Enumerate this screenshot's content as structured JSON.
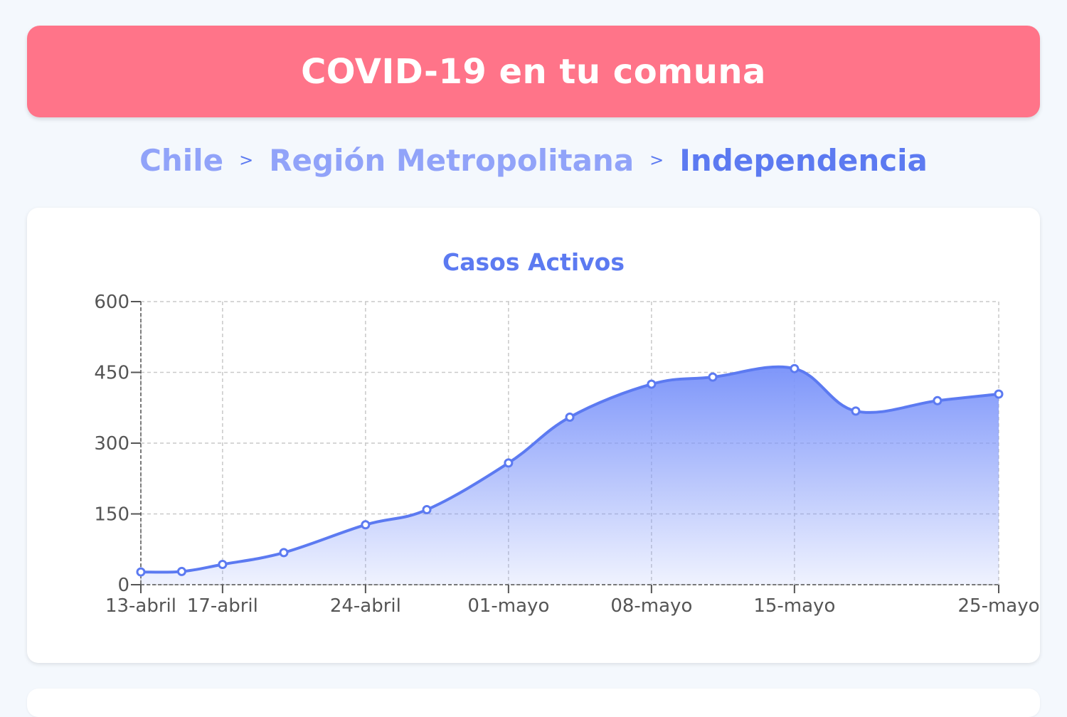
{
  "header": {
    "title": "COVID-19 en tu comuna"
  },
  "breadcrumb": {
    "items": [
      "Chile",
      "Región Metropolitana",
      "Independencia"
    ],
    "separator": ">"
  },
  "colors": {
    "header_bg": "#ff7489",
    "accent": "#5c7af1",
    "breadcrumb_link": "#91a3f9"
  },
  "chart_data": {
    "type": "area",
    "title": "Casos Activos",
    "xlabel": "",
    "ylabel": "",
    "ylim": [
      0,
      600
    ],
    "yticks": [
      0,
      150,
      300,
      450,
      600
    ],
    "x": [
      "13-abril",
      "15-abril",
      "17-abril",
      "20-abril",
      "24-abril",
      "27-abril",
      "01-mayo",
      "04-mayo",
      "08-mayo",
      "11-mayo",
      "15-mayo",
      "18-mayo",
      "22-mayo",
      "25-mayo"
    ],
    "xticks": [
      "13-abril",
      "17-abril",
      "24-abril",
      "01-mayo",
      "08-mayo",
      "15-mayo",
      "25-mayo"
    ],
    "series": [
      {
        "values": [
          27,
          28,
          43,
          68,
          127,
          159,
          258,
          355,
          425,
          440,
          458,
          368,
          390,
          404
        ]
      }
    ],
    "grid": true,
    "line_color": "#5c7af1"
  }
}
